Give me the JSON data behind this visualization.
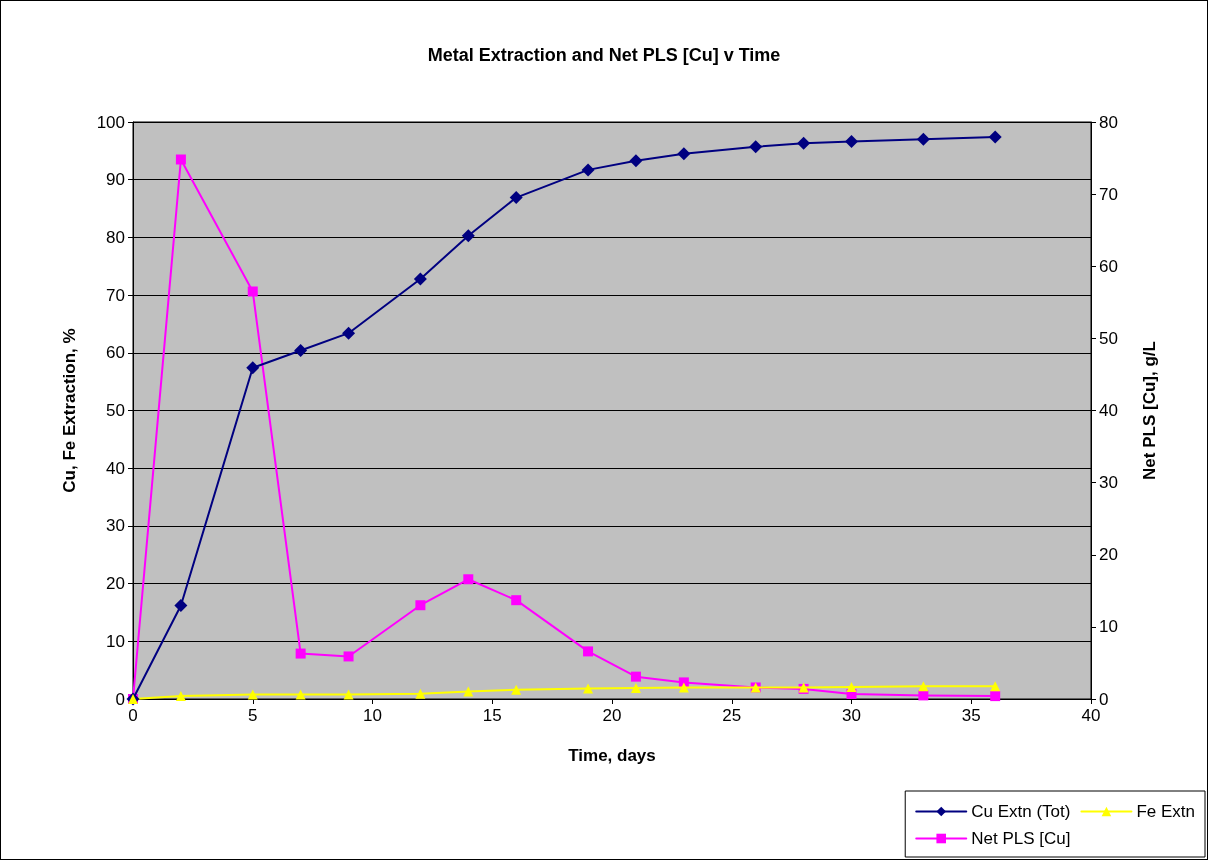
{
  "chart_data": {
    "type": "line",
    "title": "Metal Extraction and Net PLS [Cu] v Time",
    "xlabel": "Time, days",
    "ylabel": "Cu, Fe Extraction, %",
    "y2label": "Net PLS [Cu], g/L",
    "x": [
      0,
      2,
      5,
      7,
      9,
      12,
      14,
      16,
      19,
      21,
      23,
      26,
      28,
      30,
      33,
      36
    ],
    "series": [
      {
        "name": "Cu Extn (Tot)",
        "color": "#000080",
        "marker": "diamond",
        "values": [
          0,
          16.2,
          57.4,
          60.4,
          63.4,
          72.8,
          80.3,
          86.9,
          91.7,
          93.3,
          94.5,
          95.7,
          96.3,
          96.6,
          97.0,
          97.4
        ]
      },
      {
        "name": "Fe Extn",
        "color": "#ffff00",
        "marker": "triangle",
        "values": [
          0,
          0.5,
          0.8,
          0.8,
          0.8,
          0.9,
          1.3,
          1.6,
          1.8,
          1.9,
          2.0,
          2.0,
          2.0,
          2.1,
          2.2,
          2.2
        ]
      },
      {
        "name": "Net PLS [Cu]",
        "color": "#ff00ff",
        "marker": "square",
        "axis": "y2",
        "values": [
          0,
          74.8,
          56.5,
          6.3,
          5.9,
          13.0,
          16.6,
          13.7,
          6.6,
          3.1,
          2.3,
          1.6,
          1.4,
          0.7,
          0.5,
          0.4
        ]
      }
    ],
    "xlim": [
      0,
      40
    ],
    "xticks": [
      0,
      5,
      10,
      15,
      20,
      25,
      30,
      35,
      40
    ],
    "ylim": [
      0,
      100
    ],
    "yticks": [
      0,
      10,
      20,
      30,
      40,
      50,
      60,
      70,
      80,
      90,
      100
    ],
    "y2lim": [
      0,
      80
    ],
    "y2ticks": [
      0,
      10,
      20,
      30,
      40,
      50,
      60,
      70,
      80
    ],
    "grid": "y",
    "legend": "bottom right"
  }
}
